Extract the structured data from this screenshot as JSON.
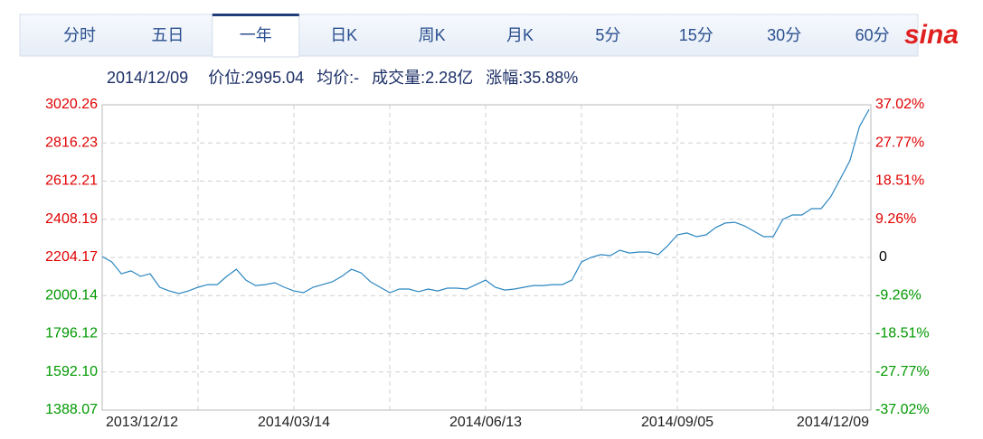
{
  "tabs": [
    "分时",
    "五日",
    "一年",
    "日K",
    "周K",
    "月K",
    "5分",
    "15分",
    "30分",
    "60分"
  ],
  "selected_tab": 2,
  "logo": "sina",
  "info": [
    "2014/12/09",
    "价位:2995.04",
    "均价:-",
    "成交量:2.28亿",
    "涨幅:35.88%"
  ],
  "chart_data": {
    "type": "line",
    "color": "#2b86c0",
    "up_color": "#e00000",
    "down_color": "#009900",
    "grid": true,
    "categories": [
      "2013/12/12",
      null,
      null,
      null,
      null,
      null,
      null,
      null,
      null,
      null,
      null,
      null,
      null,
      null,
      null,
      null,
      null,
      null,
      null,
      null,
      "2014/03/14",
      null,
      null,
      null,
      null,
      null,
      null,
      null,
      null,
      null,
      null,
      null,
      null,
      null,
      null,
      null,
      null,
      null,
      null,
      null,
      "2014/06/13",
      null,
      null,
      null,
      null,
      null,
      null,
      null,
      null,
      null,
      null,
      null,
      null,
      null,
      null,
      null,
      null,
      null,
      null,
      null,
      "2014/09/05",
      null,
      null,
      null,
      null,
      null,
      null,
      null,
      null,
      null,
      null,
      null,
      null,
      null,
      null,
      null,
      null,
      null,
      null,
      null,
      "2014/12/09"
    ],
    "values": [
      2209,
      2180,
      2117,
      2132,
      2103,
      2117,
      2045,
      2025,
      2011,
      2025,
      2045,
      2059,
      2059,
      2103,
      2141,
      2083,
      2054,
      2059,
      2069,
      2045,
      2025,
      2016,
      2045,
      2059,
      2074,
      2103,
      2141,
      2122,
      2074,
      2045,
      2016,
      2035,
      2035,
      2021,
      2035,
      2025,
      2040,
      2040,
      2035,
      2059,
      2083,
      2045,
      2030,
      2035,
      2045,
      2054,
      2054,
      2059,
      2059,
      2083,
      2180,
      2204,
      2219,
      2214,
      2243,
      2228,
      2233,
      2233,
      2219,
      2267,
      2325,
      2335,
      2315,
      2325,
      2364,
      2388,
      2392,
      2373,
      2344,
      2315,
      2315,
      2407,
      2431,
      2431,
      2465,
      2465,
      2528,
      2624,
      2721,
      2904,
      2995.04
    ],
    "ylim": [
      1388.07,
      3020.26
    ],
    "yticks": [
      3020.26,
      2816.23,
      2612.21,
      2408.19,
      2204.17,
      2000.14,
      1796.12,
      {
        "value": 1592.1,
        "label": "1592.10"
      },
      1388.07
    ],
    "y2lim": [
      -37.02,
      37.02
    ],
    "y2ticks": [
      {
        "value": 37.02,
        "label": "37.02%"
      },
      {
        "value": 27.77,
        "label": "27.77%"
      },
      {
        "value": 18.51,
        "label": "18.51%"
      },
      {
        "value": 9.26,
        "label": "9.26%"
      },
      0,
      {
        "value": -9.26,
        "label": "-9.26%"
      },
      {
        "value": -18.51,
        "label": "-18.51%"
      },
      {
        "value": -27.77,
        "label": "-27.77%"
      },
      {
        "value": -37.02,
        "label": "-37.02%"
      }
    ]
  }
}
